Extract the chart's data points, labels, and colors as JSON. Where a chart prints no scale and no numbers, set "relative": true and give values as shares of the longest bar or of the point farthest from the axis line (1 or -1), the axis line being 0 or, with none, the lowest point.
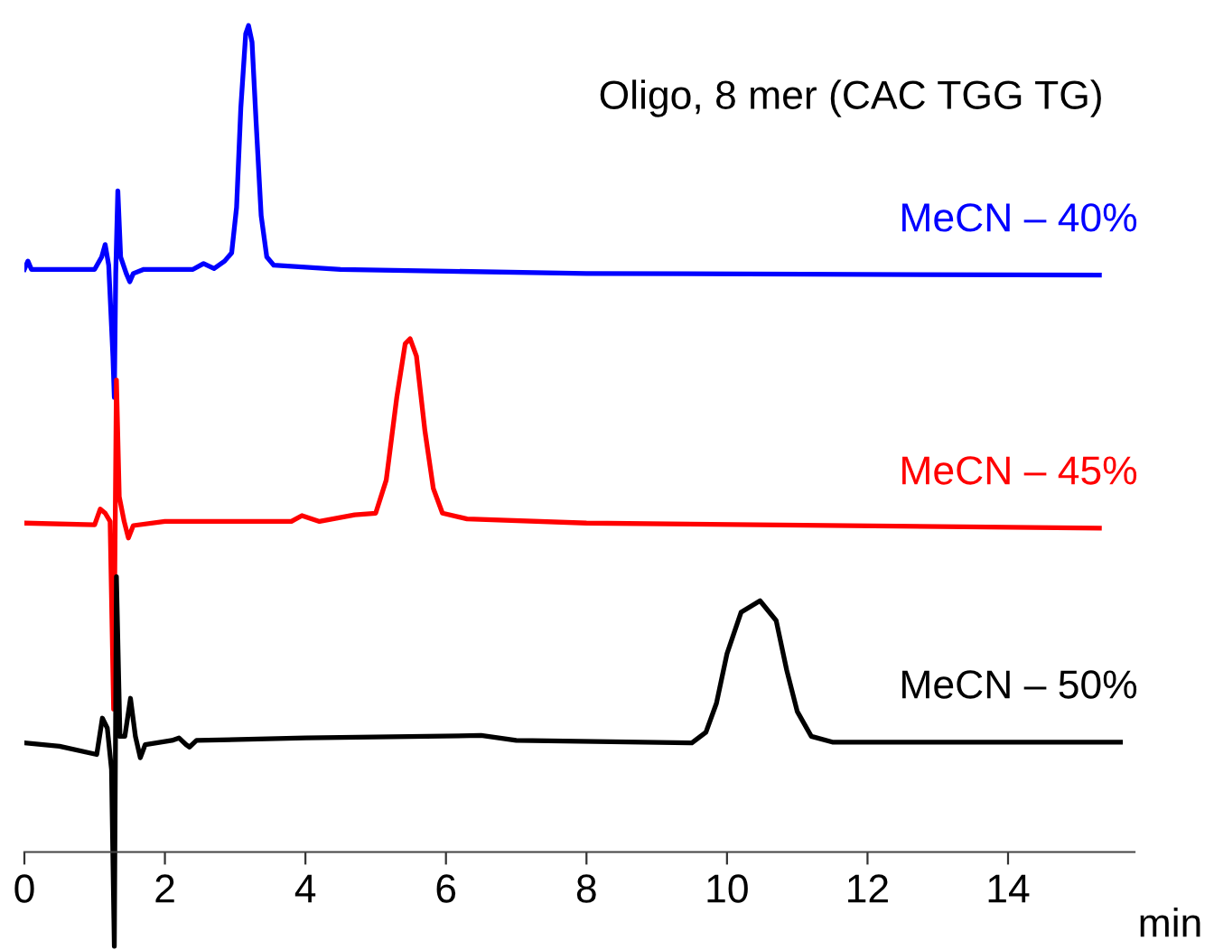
{
  "chart_data": {
    "type": "line",
    "relative": true,
    "xlabel": "min",
    "xlim": [
      0,
      15.8
    ],
    "xticks": [
      0,
      2,
      4,
      6,
      8,
      10,
      12,
      14
    ],
    "tick_labels": "x",
    "legend": false,
    "grid": false,
    "marker": "none",
    "line_style": "solid",
    "annotations": [
      "Oligo, 8 mer (CAC TGG TG)"
    ],
    "series": [
      {
        "name": "MeCN – 40%",
        "color": "#0000ff",
        "x": [
          0,
          0.05,
          0.1,
          1.0,
          1.1,
          1.15,
          1.2,
          1.26,
          1.28,
          1.3,
          1.33,
          1.37,
          1.45,
          1.5,
          1.55,
          1.7,
          2.4,
          2.55,
          2.7,
          2.85,
          2.95,
          3.02,
          3.08,
          3.15,
          3.19,
          3.24,
          3.3,
          3.37,
          3.45,
          3.55,
          4.5,
          8,
          15.3
        ],
        "values": [
          0.705,
          0.715,
          0.705,
          0.705,
          0.72,
          0.735,
          0.71,
          0.6,
          0.55,
          0.7,
          0.8,
          0.72,
          0.7,
          0.69,
          0.7,
          0.705,
          0.705,
          0.712,
          0.706,
          0.715,
          0.725,
          0.78,
          0.9,
          0.99,
          1.0,
          0.98,
          0.88,
          0.77,
          0.72,
          0.71,
          0.705,
          0.7,
          0.698
        ]
      },
      {
        "name": "MeCN – 45%",
        "color": "#ff0000",
        "x": [
          0,
          1.0,
          1.08,
          1.15,
          1.22,
          1.27,
          1.31,
          1.35,
          1.42,
          1.48,
          1.55,
          2.0,
          3.8,
          3.95,
          4.2,
          4.7,
          5.0,
          5.15,
          5.3,
          5.42,
          5.49,
          5.58,
          5.7,
          5.82,
          5.95,
          6.3,
          8,
          15.3
        ],
        "values": [
          0.398,
          0.396,
          0.415,
          0.41,
          0.4,
          0.173,
          0.571,
          0.43,
          0.4,
          0.38,
          0.395,
          0.4,
          0.4,
          0.407,
          0.4,
          0.408,
          0.41,
          0.45,
          0.55,
          0.615,
          0.621,
          0.6,
          0.51,
          0.44,
          0.41,
          0.403,
          0.398,
          0.392
        ]
      },
      {
        "name": "MeCN – 50%",
        "color": "#000000",
        "x": [
          0,
          0.5,
          1.03,
          1.11,
          1.18,
          1.24,
          1.28,
          1.31,
          1.36,
          1.43,
          1.51,
          1.58,
          1.65,
          1.72,
          2.1,
          2.2,
          2.3,
          2.35,
          2.45,
          4,
          6.5,
          7,
          9.5,
          9.7,
          9.85,
          10.0,
          10.2,
          10.47,
          10.7,
          10.85,
          11.0,
          11.2,
          11.5,
          15.6
        ],
        "values": [
          0.132,
          0.128,
          0.118,
          0.162,
          0.15,
          0.1,
          -0.114,
          0.333,
          0.14,
          0.14,
          0.186,
          0.14,
          0.114,
          0.13,
          0.135,
          0.138,
          0.13,
          0.127,
          0.135,
          0.138,
          0.141,
          0.135,
          0.132,
          0.145,
          0.18,
          0.24,
          0.29,
          0.304,
          0.28,
          0.22,
          0.17,
          0.14,
          0.133,
          0.133
        ]
      }
    ]
  }
}
